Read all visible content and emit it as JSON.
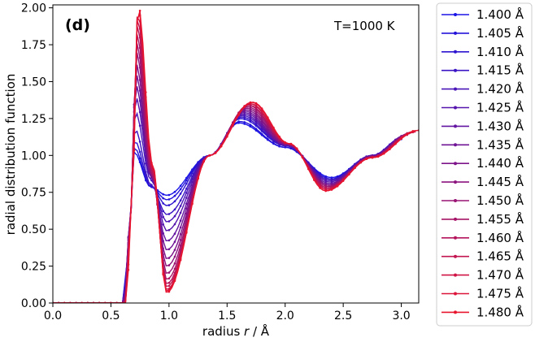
{
  "chart_data": {
    "type": "line",
    "panel_label": "(d)",
    "annotation": "T=1000 K",
    "xlabel_prefix": "radius ",
    "xlabel_var": "r",
    "xlabel_suffix": " / Å",
    "ylabel": "radial distribution function",
    "xlim": [
      0.0,
      3.15
    ],
    "ylim": [
      0.0,
      2.02
    ],
    "xticks": [
      0.0,
      0.5,
      1.0,
      1.5,
      2.0,
      2.5,
      3.0
    ],
    "xtick_labels": [
      "0.0",
      "0.5",
      "1.0",
      "1.5",
      "2.0",
      "2.5",
      "3.0"
    ],
    "yticks": [
      0.0,
      0.25,
      0.5,
      0.75,
      1.0,
      1.25,
      1.5,
      1.75,
      2.0
    ],
    "ytick_labels": [
      "0.00",
      "0.25",
      "0.50",
      "0.75",
      "1.00",
      "1.25",
      "1.50",
      "1.75",
      "2.00"
    ],
    "grid": false,
    "legend_position": "outside-right",
    "series": [
      {
        "name": "1.400 Å",
        "color": "#1a14e6",
        "peak": 1.02,
        "min": 0.73,
        "max2": 1.22,
        "min2": 0.85,
        "end": 1.11
      },
      {
        "name": "1.405 Å",
        "color": "#2414d9",
        "peak": 1.05,
        "min": 0.7,
        "max2": 1.23,
        "min2": 0.84,
        "end": 1.12
      },
      {
        "name": "1.410 Å",
        "color": "#2d14cf",
        "peak": 1.1,
        "min": 0.66,
        "max2": 1.25,
        "min2": 0.84,
        "end": 1.12
      },
      {
        "name": "1.415 Å",
        "color": "#3a14c4",
        "peak": 1.18,
        "min": 0.6,
        "max2": 1.26,
        "min2": 0.83,
        "end": 1.13
      },
      {
        "name": "1.420 Å",
        "color": "#4814b8",
        "peak": 1.3,
        "min": 0.55,
        "max2": 1.27,
        "min2": 0.83,
        "end": 1.13
      },
      {
        "name": "1.425 Å",
        "color": "#5514ad",
        "peak": 1.4,
        "min": 0.49,
        "max2": 1.28,
        "min2": 0.82,
        "end": 1.14
      },
      {
        "name": "1.430 Å",
        "color": "#6314a1",
        "peak": 1.48,
        "min": 0.42,
        "max2": 1.29,
        "min2": 0.81,
        "end": 1.14
      },
      {
        "name": "1.435 Å",
        "color": "#701496",
        "peak": 1.55,
        "min": 0.36,
        "max2": 1.3,
        "min2": 0.8,
        "end": 1.14
      },
      {
        "name": "1.440 Å",
        "color": "#7e148a",
        "peak": 1.62,
        "min": 0.3,
        "max2": 1.31,
        "min2": 0.8,
        "end": 1.15
      },
      {
        "name": "1.445 Å",
        "color": "#8c147e",
        "peak": 1.7,
        "min": 0.25,
        "max2": 1.32,
        "min2": 0.79,
        "end": 1.15
      },
      {
        "name": "1.450 Å",
        "color": "#991473",
        "peak": 1.76,
        "min": 0.2,
        "max2": 1.33,
        "min2": 0.79,
        "end": 1.15
      },
      {
        "name": "1.455 Å",
        "color": "#a71467",
        "peak": 1.82,
        "min": 0.16,
        "max2": 1.34,
        "min2": 0.78,
        "end": 1.16
      },
      {
        "name": "1.460 Å",
        "color": "#b4145c",
        "peak": 1.88,
        "min": 0.13,
        "max2": 1.34,
        "min2": 0.78,
        "end": 1.16
      },
      {
        "name": "1.465 Å",
        "color": "#c21450",
        "peak": 1.93,
        "min": 0.11,
        "max2": 1.35,
        "min2": 0.77,
        "end": 1.16
      },
      {
        "name": "1.470 Å",
        "color": "#cf1445",
        "peak": 1.97,
        "min": 0.09,
        "max2": 1.35,
        "min2": 0.77,
        "end": 1.16
      },
      {
        "name": "1.475 Å",
        "color": "#dc1439",
        "peak": 2.0,
        "min": 0.08,
        "max2": 1.36,
        "min2": 0.76,
        "end": 1.17
      },
      {
        "name": "1.480 Å",
        "color": "#e8142e",
        "peak": 2.02,
        "min": 0.07,
        "max2": 1.36,
        "min2": 0.76,
        "end": 1.17
      }
    ]
  }
}
